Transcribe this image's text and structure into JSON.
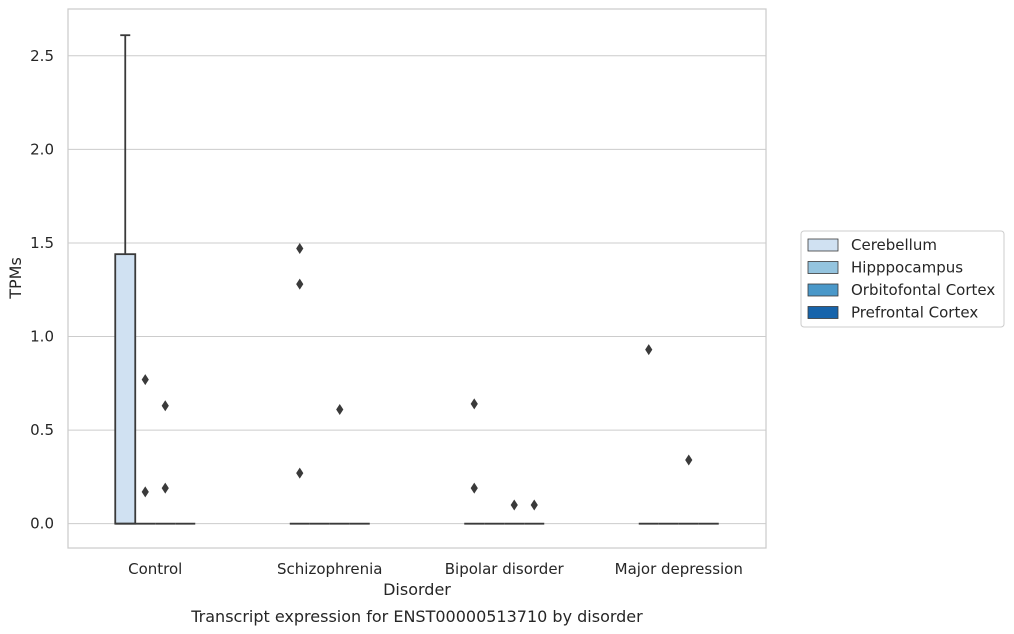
{
  "chart_data": {
    "type": "box",
    "title": "",
    "caption": "Transcript expression for ENST00000513710 by disorder",
    "xlabel": "Disorder",
    "ylabel": "TPMs",
    "ylim": [
      -0.13,
      2.75
    ],
    "yticks": [
      0.0,
      0.5,
      1.0,
      1.5,
      2.0,
      2.5
    ],
    "ytick_labels": [
      "0.0",
      "0.5",
      "1.0",
      "1.5",
      "2.0",
      "2.5"
    ],
    "grid": "horizontal",
    "legend_position": "right",
    "categories": [
      "Control",
      "Schizophrenia",
      "Bipolar disorder",
      "Major depression"
    ],
    "series": [
      {
        "name": "Cerebellum",
        "color": "#d0e1f2",
        "boxes": [
          {
            "category": "Control",
            "min": 0.0,
            "q1": 0.0,
            "median": 0.0,
            "q3": 1.44,
            "max": 2.61,
            "outliers": []
          },
          {
            "category": "Schizophrenia",
            "min": 0.0,
            "q1": 0.0,
            "median": 0.0,
            "q3": 0.0,
            "max": 0.0,
            "outliers": [
              1.47,
              1.28,
              0.27
            ]
          },
          {
            "category": "Bipolar disorder",
            "min": 0.0,
            "q1": 0.0,
            "median": 0.0,
            "q3": 0.0,
            "max": 0.0,
            "outliers": [
              0.64,
              0.19
            ]
          },
          {
            "category": "Major depression",
            "min": 0.0,
            "q1": 0.0,
            "median": 0.0,
            "q3": 0.0,
            "max": 0.0,
            "outliers": [
              0.93
            ]
          }
        ]
      },
      {
        "name": "Hipppocampus",
        "color": "#94c4df",
        "boxes": [
          {
            "category": "Control",
            "min": 0.0,
            "q1": 0.0,
            "median": 0.0,
            "q3": 0.0,
            "max": 0.0,
            "outliers": [
              0.77,
              0.17
            ]
          },
          {
            "category": "Schizophrenia",
            "min": 0.0,
            "q1": 0.0,
            "median": 0.0,
            "q3": 0.0,
            "max": 0.0,
            "outliers": []
          },
          {
            "category": "Bipolar disorder",
            "min": 0.0,
            "q1": 0.0,
            "median": 0.0,
            "q3": 0.0,
            "max": 0.0,
            "outliers": []
          },
          {
            "category": "Major depression",
            "min": 0.0,
            "q1": 0.0,
            "median": 0.0,
            "q3": 0.0,
            "max": 0.0,
            "outliers": []
          }
        ]
      },
      {
        "name": "Orbitofontal Cortex",
        "color": "#4a98c9",
        "boxes": [
          {
            "category": "Control",
            "min": 0.0,
            "q1": 0.0,
            "median": 0.0,
            "q3": 0.0,
            "max": 0.0,
            "outliers": [
              0.63,
              0.19
            ]
          },
          {
            "category": "Schizophrenia",
            "min": 0.0,
            "q1": 0.0,
            "median": 0.0,
            "q3": 0.0,
            "max": 0.0,
            "outliers": [
              0.61
            ]
          },
          {
            "category": "Bipolar disorder",
            "min": 0.0,
            "q1": 0.0,
            "median": 0.0,
            "q3": 0.0,
            "max": 0.0,
            "outliers": [
              0.1
            ]
          },
          {
            "category": "Major depression",
            "min": 0.0,
            "q1": 0.0,
            "median": 0.0,
            "q3": 0.0,
            "max": 0.0,
            "outliers": [
              0.34
            ]
          }
        ]
      },
      {
        "name": "Prefrontal Cortex",
        "color": "#1764ab",
        "boxes": [
          {
            "category": "Control",
            "min": 0.0,
            "q1": 0.0,
            "median": 0.0,
            "q3": 0.0,
            "max": 0.0,
            "outliers": []
          },
          {
            "category": "Schizophrenia",
            "min": 0.0,
            "q1": 0.0,
            "median": 0.0,
            "q3": 0.0,
            "max": 0.0,
            "outliers": []
          },
          {
            "category": "Bipolar disorder",
            "min": 0.0,
            "q1": 0.0,
            "median": 0.0,
            "q3": 0.0,
            "max": 0.0,
            "outliers": [
              0.1
            ]
          },
          {
            "category": "Major depression",
            "min": 0.0,
            "q1": 0.0,
            "median": 0.0,
            "q3": 0.0,
            "max": 0.0,
            "outliers": []
          }
        ]
      }
    ],
    "colors": {
      "frame": "#cccccc",
      "grid": "#cccccc",
      "box_edge": "#3a3a3a",
      "outlier": "#3a3a3a"
    }
  }
}
